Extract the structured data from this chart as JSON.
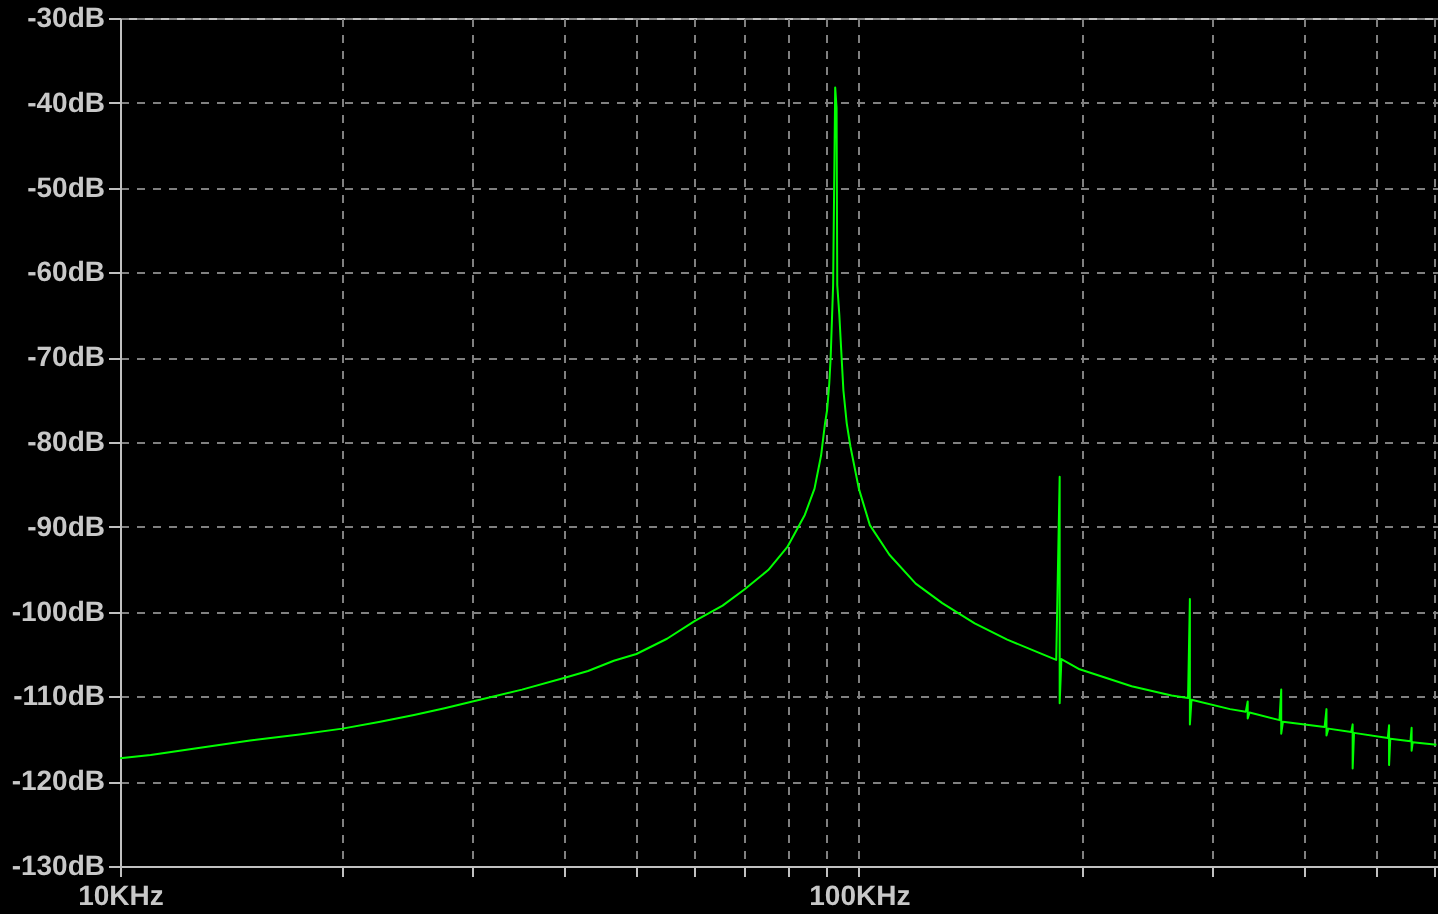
{
  "chart_data": {
    "type": "line",
    "x": [
      10,
      11,
      12.5,
      15,
      17.5,
      20,
      22.5,
      25,
      27.5,
      30,
      35,
      40,
      43,
      46.6,
      50,
      55,
      60,
      65.4,
      70,
      75.4,
      80,
      84.5,
      87.1,
      88.9,
      90,
      90.6,
      91.2,
      91.6,
      92.3,
      92.9,
      93.3,
      93.5,
      94.1,
      94.5,
      95.3,
      96.3,
      97.4,
      100,
      103.5,
      110,
      119.4,
      129.7,
      143.5,
      158.8,
      175.8,
      185,
      187,
      187,
      188,
      199,
      234,
      265,
      279,
      280.6,
      280.6,
      282,
      318,
      334,
      336,
      336,
      338,
      371,
      373,
      373,
      375,
      427,
      429.5,
      429.5,
      432,
      464,
      466,
      466,
      468,
      520,
      522,
      522,
      524,
      558,
      560,
      560,
      562,
      605
    ],
    "series": [
      {
        "color": "#00ff00",
        "values": [
          -117.3,
          -116.9,
          -116.2,
          -115.2,
          -114.5,
          -113.8,
          -113.0,
          -112.2,
          -111.4,
          -110.6,
          -109.2,
          -107.8,
          -107.0,
          -105.8,
          -105.0,
          -103.2,
          -101.1,
          -99.3,
          -97.4,
          -95.1,
          -92.4,
          -88.6,
          -85.5,
          -81.6,
          -77.8,
          -76.2,
          -73.1,
          -70.0,
          -61.5,
          -38.2,
          -40.6,
          -61.5,
          -65.0,
          -68.0,
          -73.9,
          -77.8,
          -80.5,
          -85.5,
          -89.8,
          -93.3,
          -96.7,
          -99.0,
          -101.4,
          -103.3,
          -104.9,
          -105.7,
          -84.1,
          -110.8,
          -105.6,
          -106.8,
          -108.8,
          -109.9,
          -110.2,
          -98.5,
          -113.3,
          -110.4,
          -111.5,
          -111.8,
          -110.6,
          -112.6,
          -111.9,
          -112.8,
          -109.2,
          -114.4,
          -113.0,
          -113.6,
          -111.5,
          -114.6,
          -113.8,
          -114.2,
          -113.3,
          -118.5,
          -114.3,
          -114.9,
          -113.4,
          -118.1,
          -115.0,
          -115.3,
          -113.7,
          -116.4,
          -115.4,
          -115.7
        ]
      }
    ],
    "xlim": [
      10,
      608
    ],
    "xticks": [
      {
        "value": 10,
        "label": "10KHz"
      },
      {
        "value": 20,
        "label": null
      },
      {
        "value": 30,
        "label": null
      },
      {
        "value": 40,
        "label": null
      },
      {
        "value": 50,
        "label": null
      },
      {
        "value": 60,
        "label": null
      },
      {
        "value": 70,
        "label": null
      },
      {
        "value": 80,
        "label": null
      },
      {
        "value": 90,
        "label": null
      },
      {
        "value": 100,
        "label": "100KHz"
      },
      {
        "value": 200,
        "label": null
      },
      {
        "value": 300,
        "label": null
      },
      {
        "value": 400,
        "label": null
      },
      {
        "value": 500,
        "label": null
      },
      {
        "value": 600,
        "label": null
      }
    ],
    "ylim": [
      -130,
      -30
    ],
    "yticks": [
      {
        "value": -130,
        "label": "-130dB"
      },
      {
        "value": -120,
        "label": "-120dB"
      },
      {
        "value": -110,
        "label": "-110dB"
      },
      {
        "value": -100,
        "label": "-100dB"
      },
      {
        "value": -90,
        "label": "-90dB"
      },
      {
        "value": -80,
        "label": "-80dB"
      },
      {
        "value": -70,
        "label": "-70dB"
      },
      {
        "value": -60,
        "label": "-60dB"
      },
      {
        "value": -50,
        "label": "-50dB"
      },
      {
        "value": -40,
        "label": "-40dB"
      },
      {
        "value": -30,
        "label": "-30dB"
      }
    ],
    "log": "x",
    "grid": true
  }
}
